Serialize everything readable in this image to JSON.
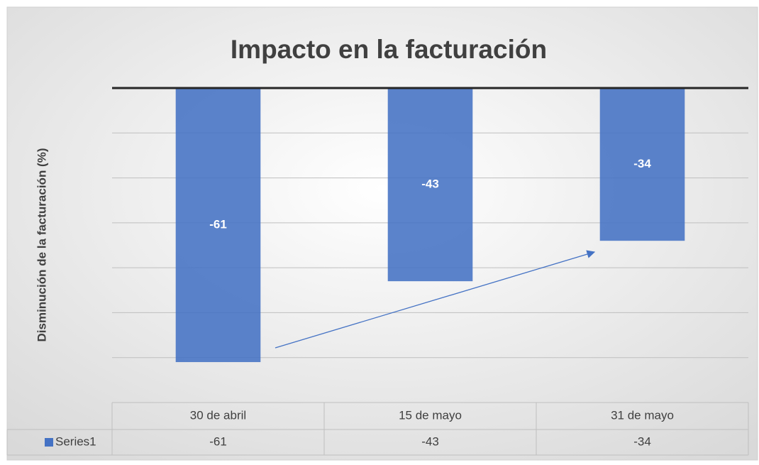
{
  "chart_data": {
    "type": "bar",
    "title": "Impacto en la facturación",
    "y_label": "Disminución de la facturación (%)",
    "categories": [
      "30 de abril",
      "15 de mayo",
      "31 de mayo"
    ],
    "series": [
      {
        "name": "Series1",
        "color": "#4472c4",
        "values": [
          -61,
          -43,
          -34
        ]
      }
    ],
    "ylim": [
      -70,
      0
    ],
    "yticks": [
      0,
      -10,
      -20,
      -30,
      -40,
      -50,
      -60
    ],
    "grid": true,
    "data_table": true
  }
}
